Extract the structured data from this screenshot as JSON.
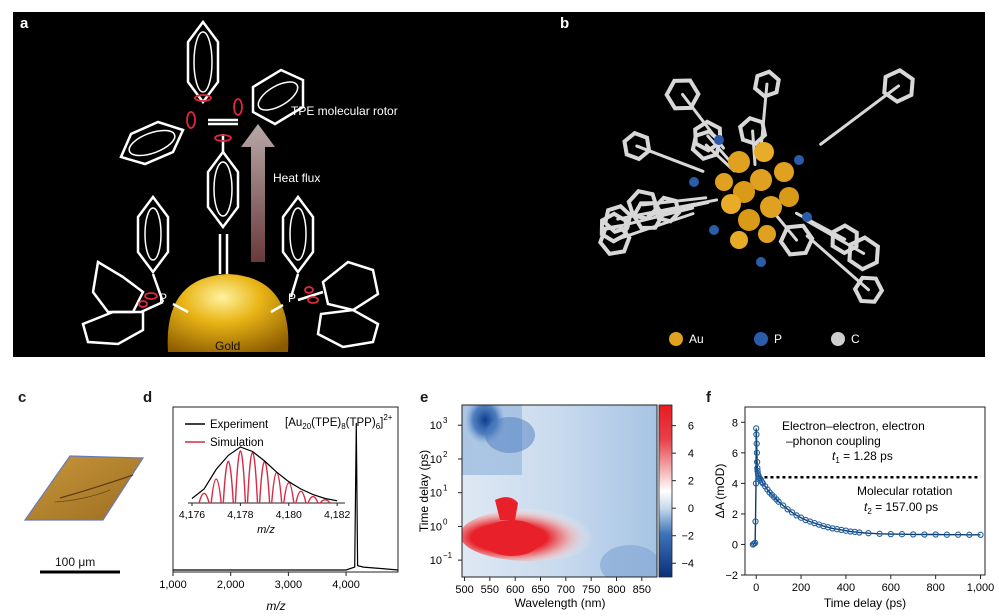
{
  "panels": {
    "a": {
      "label": "a",
      "rotor_label": "TPE molecular rotor",
      "heat_label": "Heat flux",
      "gold_label": "Gold",
      "p_left": "P",
      "p_right": "P"
    },
    "b": {
      "label": "b",
      "legend": [
        {
          "name": "Au",
          "color": "#e0a020"
        },
        {
          "name": "P",
          "color": "#2a5caa"
        },
        {
          "name": "C",
          "color": "#cfcfcf"
        }
      ]
    },
    "c": {
      "label": "c",
      "scalebar_label": "100 μm"
    },
    "d": {
      "label": "d",
      "formula_main": "[Au",
      "formula_sub1": "20",
      "formula_mid1": "(TPE)",
      "formula_sub2": "8",
      "formula_mid2": "(TPP)",
      "formula_sub3": "6",
      "formula_end": "]",
      "formula_sup": "2+",
      "legend_experiment": "Experiment",
      "legend_simulation": "Simulation",
      "xlabel": "m/z",
      "inset_xlabel": "m/z",
      "xticks": [
        "1,000",
        "2,000",
        "3,000",
        "4,000"
      ],
      "inset_xticks": [
        "4,176",
        "4,178",
        "4,180",
        "4,182"
      ]
    },
    "e": {
      "label": "e",
      "xlabel": "Wavelength (nm)",
      "ylabel": "Time delay (ps)",
      "xticks": [
        "500",
        "550",
        "600",
        "650",
        "700",
        "750",
        "800",
        "850"
      ],
      "yticks": [
        "10",
        "10",
        "10",
        "10",
        "10"
      ],
      "yticks_exp": [
        "3",
        "2",
        "1",
        "0",
        "−1"
      ],
      "cbar_ticks": [
        "6",
        "4",
        "2",
        "0",
        "−2",
        "−4"
      ]
    },
    "f": {
      "label": "f",
      "xlabel": "Time delay (ps)",
      "ylabel": "ΔA (mOD)",
      "annot1_line1": "Electron–electron, electron",
      "annot1_line2": "–phonon coupling",
      "annot1_t": "t",
      "annot1_sub": "1",
      "annot1_val": " = 1.28 ps",
      "annot2_line1": "Molecular rotation",
      "annot2_t": "t",
      "annot2_sub": "2",
      "annot2_val": " = 157.00 ps",
      "xticks": [
        "0",
        "200",
        "400",
        "600",
        "800",
        "1,000"
      ],
      "yticks": [
        "8",
        "6",
        "4",
        "2",
        "0",
        "−2"
      ]
    }
  },
  "chart_data": [
    {
      "panel": "d",
      "type": "line",
      "xlabel": "m/z",
      "ylabel": "",
      "xlim": [
        1000,
        4900
      ],
      "series": [
        {
          "name": "Experiment",
          "color": "#000000",
          "x": [
            1000,
            1500,
            2000,
            2500,
            3000,
            3500,
            4000,
            4150,
            4178,
            4200,
            4300,
            4600,
            4900
          ],
          "y": [
            0,
            0,
            0,
            0,
            0,
            0,
            0,
            0.02,
            1.0,
            0.03,
            0.02,
            0.01,
            0
          ]
        }
      ],
      "inset": {
        "xlabel": "m/z",
        "xlim": [
          4176,
          4182.2
        ],
        "series": [
          {
            "name": "Experiment",
            "color": "#000000",
            "x": [
              4176.0,
              4176.5,
              4177.0,
              4177.5,
              4178.0,
              4178.5,
              4179.0,
              4179.5,
              4180.0,
              4180.5,
              4181.0,
              4181.5,
              4182.0
            ],
            "y": [
              0.08,
              0.25,
              0.6,
              0.85,
              1.0,
              0.92,
              0.75,
              0.55,
              0.38,
              0.25,
              0.15,
              0.08,
              0.04
            ]
          },
          {
            "name": "Simulation",
            "color": "#d62a45",
            "peaks_x": [
              4176.5,
              4177.0,
              4177.5,
              4178.0,
              4178.5,
              4179.0,
              4179.5,
              4180.0,
              4180.5,
              4181.0,
              4181.5
            ],
            "peaks_y": [
              0.18,
              0.45,
              0.78,
              0.98,
              0.95,
              0.78,
              0.58,
              0.38,
              0.22,
              0.12,
              0.06
            ]
          }
        ]
      }
    },
    {
      "panel": "e",
      "type": "heatmap",
      "xlabel": "Wavelength (nm)",
      "ylabel": "Time delay (ps)",
      "xlim": [
        495,
        880
      ],
      "ylim_log10": [
        -1.5,
        3.6
      ],
      "colorbar_range": [
        -5,
        7.5
      ]
    },
    {
      "panel": "f",
      "type": "scatter",
      "xlabel": "Time delay (ps)",
      "ylabel": "ΔA (mOD)",
      "xlim": [
        -50,
        1020
      ],
      "ylim": [
        -2,
        9
      ],
      "hline_y": 4.4,
      "series": [
        {
          "name": "Data",
          "color": "#1f5fa0",
          "x": [
            -15,
            -10,
            -5,
            -3,
            -1,
            0,
            1,
            2,
            3,
            4,
            5,
            6,
            8,
            10,
            12,
            15,
            20,
            25,
            30,
            40,
            50,
            60,
            70,
            80,
            90,
            100,
            120,
            140,
            160,
            180,
            200,
            220,
            240,
            260,
            280,
            300,
            320,
            340,
            360,
            380,
            400,
            420,
            440,
            460,
            500,
            550,
            600,
            650,
            700,
            750,
            800,
            850,
            900,
            950,
            1000
          ],
          "y": [
            0.0,
            0.05,
            0.1,
            1.5,
            4.0,
            7.6,
            7.2,
            6.6,
            6.0,
            5.4,
            5.0,
            4.8,
            4.6,
            4.5,
            4.4,
            4.35,
            4.25,
            4.1,
            4.0,
            3.8,
            3.6,
            3.4,
            3.25,
            3.1,
            2.95,
            2.8,
            2.55,
            2.3,
            2.1,
            1.9,
            1.75,
            1.6,
            1.5,
            1.4,
            1.3,
            1.2,
            1.12,
            1.05,
            1.0,
            0.95,
            0.9,
            0.85,
            0.82,
            0.78,
            0.74,
            0.7,
            0.68,
            0.67,
            0.66,
            0.65,
            0.65,
            0.64,
            0.64,
            0.63,
            0.63
          ]
        }
      ]
    }
  ]
}
